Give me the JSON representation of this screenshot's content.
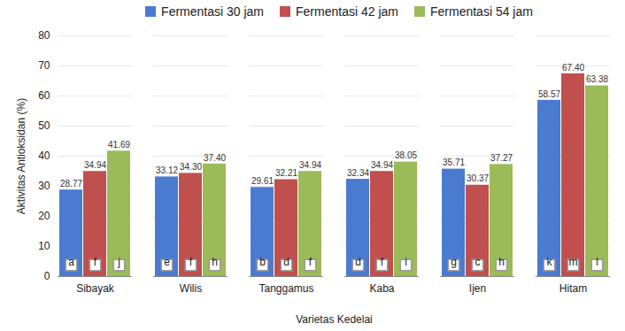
{
  "chart_data": {
    "type": "bar",
    "x_label": "Varietas Kedelai",
    "y_label": "Aktivitas Antioksidan (%)",
    "categories": [
      "Sibayak",
      "Wilis",
      "Tanggamus",
      "Kaba",
      "Ijen",
      "Hitam"
    ],
    "series": [
      {
        "name": "Fermentasi 30 jam",
        "color": "#4a7bd0",
        "values": [
          28.77,
          33.12,
          29.61,
          32.34,
          35.71,
          58.57
        ],
        "value_labels": [
          "28.77",
          "33.12",
          "29.61",
          "32.34",
          "35.71",
          "58.57"
        ],
        "annotations": [
          "a",
          "e",
          "b",
          "d",
          "g",
          "k"
        ]
      },
      {
        "name": "Fermentasi 42 jam",
        "color": "#c0504d",
        "values": [
          34.94,
          34.3,
          32.21,
          34.94,
          30.37,
          67.4
        ],
        "value_labels": [
          "34.94",
          "34.30",
          "32.21",
          "34.94",
          "30.37",
          "67.40"
        ],
        "annotations": [
          "f",
          "f",
          "d",
          "f",
          "c",
          "m"
        ]
      },
      {
        "name": "Fermentasi 54 jam",
        "color": "#9bbb59",
        "values": [
          41.69,
          37.4,
          34.94,
          38.05,
          37.27,
          63.38
        ],
        "value_labels": [
          "41.69",
          "37.40",
          "34.94",
          "38.05",
          "37.27",
          "63.38"
        ],
        "annotations": [
          "j",
          "h",
          "f",
          "i",
          "h",
          "l"
        ]
      }
    ],
    "ylim": [
      0,
      80
    ],
    "yticks": [
      0,
      10,
      20,
      30,
      40,
      50,
      60,
      70,
      80
    ],
    "grid": true,
    "legend": "top",
    "data_labels": true
  }
}
